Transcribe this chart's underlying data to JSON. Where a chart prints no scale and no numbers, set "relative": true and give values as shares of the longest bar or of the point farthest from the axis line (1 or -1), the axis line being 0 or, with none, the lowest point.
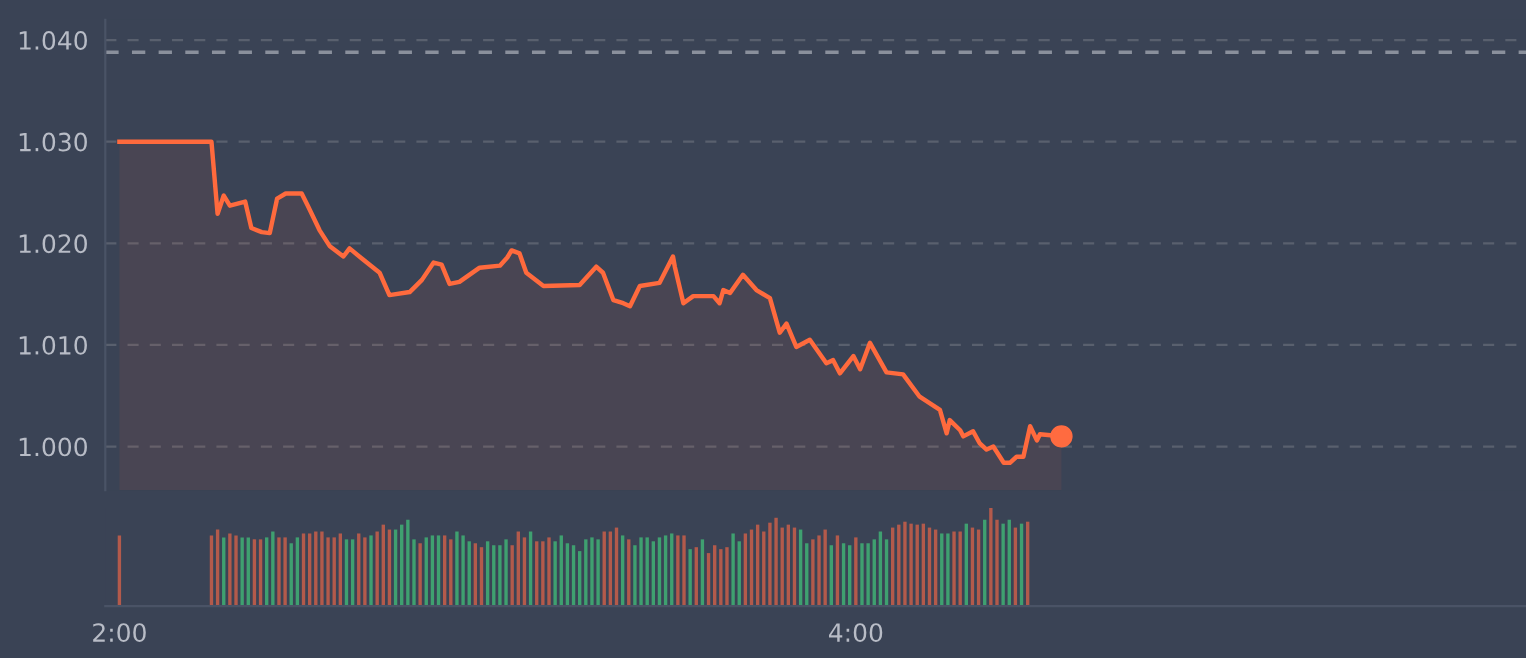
{
  "chart_data": [
    {
      "type": "area",
      "xlim": [
        117.7,
        349.2
      ],
      "ylim": [
        0.9957,
        1.042
      ],
      "yticks": [
        {
          "value": 1.0,
          "label": "1.000"
        },
        {
          "value": 1.01,
          "label": "1.010"
        },
        {
          "value": 1.02,
          "label": "1.020"
        },
        {
          "value": 1.03,
          "label": "1.030"
        },
        {
          "value": 1.04,
          "label": "1.040"
        }
      ],
      "tick_labels": "y",
      "grid": "y",
      "ref_lines": [
        {
          "axis": "y",
          "value": 1.0388,
          "color": "#8a909c",
          "line_style": "dashed"
        }
      ],
      "series": [
        {
          "type": "area",
          "color": "#ff6a3d",
          "x": [
            120,
            135,
            136,
            137,
            138,
            140.5,
            141.5,
            143.2,
            144.5,
            145.7,
            147.1,
            149.7,
            150.7,
            152.6,
            154.3,
            156.5,
            157.5,
            159.5,
            162.4,
            164,
            167.3,
            169.3,
            171.2,
            172.5,
            173.8,
            175.4,
            178.7,
            182,
            183.2,
            183.9,
            185.2,
            186.3,
            189.1,
            195,
            197.7,
            198.8,
            200.5,
            202.1,
            203.2,
            204.8,
            208,
            210.2,
            210.5,
            211.9,
            213.5,
            216.8,
            217.8,
            218.4,
            219.5,
            221.6,
            223.8,
            226,
            227.6,
            228.7,
            230.3,
            232.5,
            235.2,
            236.3,
            237.4,
            239.6,
            240.7,
            242.3,
            245,
            247.7,
            250.4,
            253.7,
            254.8,
            255.3,
            257,
            257.5,
            259.1,
            260.2,
            261.3,
            262.4,
            264.1,
            265.1,
            266.2,
            267.3,
            268.4,
            269.5,
            270,
            273.5
          ],
          "values": [
            1.03,
            1.03,
            1.0229,
            1.0247,
            1.0237,
            1.0241,
            1.0215,
            1.0211,
            1.021,
            1.0244,
            1.0249,
            1.0249,
            1.0237,
            1.0213,
            1.0197,
            1.0187,
            1.0195,
            1.0185,
            1.0171,
            1.0149,
            1.0152,
            1.0164,
            1.0181,
            1.0179,
            1.016,
            1.0162,
            1.0176,
            1.0178,
            1.0186,
            1.0193,
            1.019,
            1.0171,
            1.0158,
            1.0159,
            1.0177,
            1.0171,
            1.0144,
            1.0141,
            1.0138,
            1.0158,
            1.0161,
            1.0187,
            1.0177,
            1.0141,
            1.0148,
            1.0148,
            1.0141,
            1.0154,
            1.0151,
            1.0169,
            1.0154,
            1.0146,
            1.0112,
            1.0121,
            1.0098,
            1.0105,
            1.0082,
            1.0085,
            1.0072,
            1.0089,
            1.0076,
            1.0102,
            1.0073,
            1.0071,
            1.0049,
            1.0036,
            1.0013,
            1.0026,
            1.0016,
            1.001,
            1.0015,
            1.0003,
            0.9997,
            1.0,
            0.9984,
            0.9984,
            0.999,
            0.999,
            1.002,
            1.0006,
            1.0012,
            1.001
          ]
        },
        {
          "type": "scatter",
          "color": "#ff6b40",
          "marker": "circle",
          "x": [
            273.5
          ],
          "values": [
            1.001
          ]
        }
      ]
    },
    {
      "type": "bar",
      "relative": true,
      "xlim": [
        117.7,
        349.2
      ],
      "xticks": [
        {
          "value": 120,
          "label": "2:00"
        },
        {
          "value": 240,
          "label": "4:00"
        }
      ],
      "tick_labels": "x",
      "series": [
        {
          "color": "#b35a4b",
          "x": [
            120,
            135,
            136,
            138,
            139,
            142,
            143,
            146,
            147,
            150,
            151,
            152,
            153,
            154,
            155,
            156,
            159,
            160,
            162,
            163,
            164,
            169,
            173,
            174,
            178,
            179,
            184,
            185,
            186,
            188,
            189,
            190,
            199,
            200,
            201,
            203,
            211,
            212,
            214,
            216,
            217,
            218,
            219,
            222,
            223,
            224,
            225,
            226,
            227,
            228,
            229,
            230,
            233,
            234,
            235,
            237,
            240,
            246,
            247,
            248,
            249,
            250,
            251,
            252,
            253,
            256,
            257,
            259,
            260,
            262,
            263,
            266,
            268
          ],
          "values": [
            0.72,
            0.72,
            0.78,
            0.74,
            0.72,
            0.68,
            0.68,
            0.7,
            0.7,
            0.74,
            0.74,
            0.76,
            0.76,
            0.7,
            0.7,
            0.74,
            0.74,
            0.7,
            0.76,
            0.83,
            0.78,
            0.64,
            0.72,
            0.68,
            0.64,
            0.6,
            0.62,
            0.76,
            0.7,
            0.66,
            0.66,
            0.7,
            0.76,
            0.76,
            0.8,
            0.68,
            0.72,
            0.72,
            0.6,
            0.54,
            0.62,
            0.58,
            0.6,
            0.74,
            0.78,
            0.83,
            0.76,
            0.85,
            0.9,
            0.8,
            0.83,
            0.8,
            0.68,
            0.72,
            0.78,
            0.72,
            0.7,
            0.8,
            0.83,
            0.86,
            0.84,
            0.83,
            0.84,
            0.8,
            0.78,
            0.76,
            0.76,
            0.8,
            0.78,
            1,
            0.88,
            0.8,
            0.86
          ]
        },
        {
          "color": "#3fa070",
          "x": [
            137,
            140,
            141,
            144,
            145,
            148,
            149,
            157,
            158,
            161,
            165,
            166,
            167,
            168,
            170,
            171,
            172,
            175,
            176,
            177,
            180,
            181,
            182,
            183,
            187,
            191,
            192,
            193,
            194,
            195,
            196,
            197,
            198,
            202,
            204,
            205,
            206,
            207,
            208,
            209,
            210,
            213,
            215,
            220,
            221,
            231,
            232,
            236,
            238,
            239,
            241,
            242,
            243,
            244,
            245,
            254,
            255,
            258,
            261,
            264,
            265,
            267
          ],
          "values": [
            0.7,
            0.7,
            0.7,
            0.7,
            0.76,
            0.64,
            0.7,
            0.68,
            0.68,
            0.72,
            0.78,
            0.83,
            0.88,
            0.68,
            0.7,
            0.72,
            0.72,
            0.76,
            0.72,
            0.66,
            0.66,
            0.62,
            0.62,
            0.68,
            0.76,
            0.66,
            0.72,
            0.64,
            0.62,
            0.56,
            0.68,
            0.7,
            0.68,
            0.72,
            0.62,
            0.7,
            0.7,
            0.66,
            0.7,
            0.72,
            0.74,
            0.58,
            0.68,
            0.74,
            0.66,
            0.78,
            0.64,
            0.62,
            0.64,
            0.62,
            0.64,
            0.64,
            0.68,
            0.76,
            0.68,
            0.74,
            0.74,
            0.84,
            0.88,
            0.84,
            0.88,
            0.84
          ]
        }
      ]
    }
  ]
}
